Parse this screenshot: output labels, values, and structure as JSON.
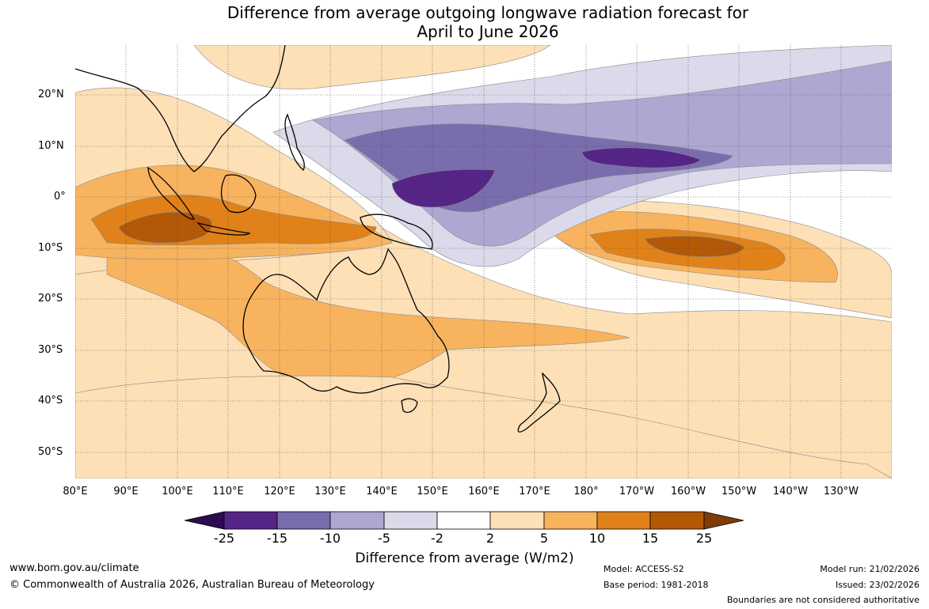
{
  "title_line1": "Difference from average outgoing longwave radiation forecast for",
  "title_line2": "April to June 2026",
  "lat_labels": [
    "20°N",
    "10°N",
    "0°",
    "10°S",
    "20°S",
    "30°S",
    "40°S",
    "50°S"
  ],
  "lon_labels": [
    "80°E",
    "90°E",
    "100°E",
    "110°E",
    "120°E",
    "130°E",
    "140°E",
    "150°E",
    "160°E",
    "170°E",
    "180°",
    "170°W",
    "160°W",
    "150°W",
    "140°W",
    "130°W"
  ],
  "legend": {
    "ticks": [
      "-25",
      "-15",
      "-10",
      "-5",
      "-2",
      "2",
      "5",
      "10",
      "15",
      "25"
    ],
    "colors": [
      "#2d0b52",
      "#542586",
      "#7a6dad",
      "#ada8d1",
      "#dadaeb",
      "#ffffff",
      "#fde0b6",
      "#f8b35f",
      "#e08219",
      "#b35807",
      "#7f3b08"
    ],
    "title": "Difference from average (W/m2)"
  },
  "footer": {
    "url": "www.bom.gov.au/climate",
    "copyright": "© Commonwealth of Australia 2026, Australian Bureau of Meteorology",
    "model": "Model: ACCESS-S2",
    "base_period": "Base period: 1981-2018",
    "model_run": "Model run: 21/02/2026",
    "issued": "Issued: 23/02/2026",
    "disclaimer": "Boundaries are not considered authoritative"
  }
}
